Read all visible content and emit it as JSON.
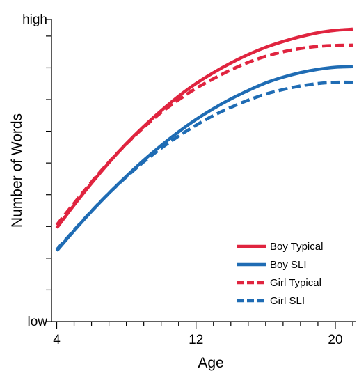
{
  "chart_data": {
    "type": "line",
    "title": "",
    "xlabel": "Age",
    "ylabel": "Number of Words",
    "xlim": [
      3.7,
      21.2
    ],
    "ylim": [
      0,
      100
    ],
    "x_ticks": [
      4,
      12,
      20
    ],
    "x_minor_ticks": [
      4,
      5,
      6,
      7,
      8,
      9,
      10,
      11,
      12,
      13,
      14,
      15,
      16,
      17,
      18,
      19,
      20,
      21
    ],
    "y_tick_labels": [
      {
        "label": "low",
        "value": 0
      },
      {
        "label": "high",
        "value": 100
      }
    ],
    "y_minor_ticks": [
      0,
      10.5,
      21,
      31.5,
      42,
      52.5,
      63,
      73.5,
      84,
      94.5,
      100
    ],
    "x": [
      4,
      5,
      6,
      7,
      8,
      9,
      10,
      11,
      12,
      13,
      14,
      15,
      16,
      17,
      18,
      19,
      20,
      21
    ],
    "series": [
      {
        "name": "Boy Typical",
        "color": "#e0243f",
        "dash": "solid",
        "values": [
          31,
          38.6,
          45.8,
          52.6,
          58.9,
          64.6,
          69.8,
          74.6,
          78.8,
          82.4,
          85.6,
          88.4,
          90.8,
          92.7,
          94.3,
          95.6,
          96.4,
          96.8
        ]
      },
      {
        "name": "Boy SLI",
        "color": "#1f6cb4",
        "dash": "solid",
        "values": [
          23.4,
          30.1,
          36.5,
          42.5,
          48.1,
          53.4,
          58.3,
          62.8,
          66.9,
          70.5,
          73.7,
          76.5,
          79,
          80.9,
          82.4,
          83.5,
          84.2,
          84.4
        ]
      },
      {
        "name": "Girl Typical",
        "color": "#e0243f",
        "dash": "dashed",
        "values": [
          32,
          39.2,
          46.2,
          52.8,
          58.8,
          64.3,
          69.2,
          73.4,
          77.2,
          80.4,
          83.3,
          85.8,
          87.8,
          89.3,
          90.4,
          91.1,
          91.4,
          91.5
        ]
      },
      {
        "name": "Girl SLI",
        "color": "#1f6cb4",
        "dash": "dashed",
        "values": [
          23.8,
          30.3,
          36.6,
          42.5,
          47.9,
          52.9,
          57.4,
          61.4,
          65,
          68.2,
          70.9,
          73.3,
          75.3,
          76.8,
          78,
          78.8,
          79.2,
          79.2
        ]
      }
    ],
    "legend_position": "bottom-right",
    "grid": false
  }
}
